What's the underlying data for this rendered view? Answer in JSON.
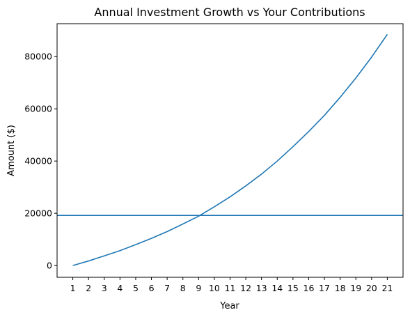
{
  "chart_data": {
    "type": "line",
    "title": "Annual Investment Growth vs Your Contributions",
    "xlabel": "Year",
    "ylabel": "Amount ($)",
    "x": [
      1,
      2,
      3,
      4,
      5,
      6,
      7,
      8,
      9,
      10,
      11,
      12,
      13,
      14,
      15,
      16,
      17,
      18,
      19,
      20,
      21
    ],
    "series": [
      {
        "color": "#1f77b4",
        "values": [
          0,
          1750,
          3700,
          5700,
          8000,
          10400,
          13000,
          15900,
          18900,
          22500,
          26300,
          30500,
          35000,
          40000,
          45500,
          51300,
          57500,
          64400,
          71800,
          79800,
          88500
        ]
      }
    ],
    "hline": {
      "value": 19200,
      "color": "#1f77b4"
    },
    "xlim": [
      0,
      22
    ],
    "ylim": [
      -4500,
      92600
    ],
    "xticks": [
      "1",
      "2",
      "3",
      "4",
      "5",
      "6",
      "7",
      "8",
      "9",
      "10",
      "11",
      "12",
      "13",
      "14",
      "15",
      "16",
      "17",
      "18",
      "19",
      "20",
      "21"
    ],
    "yticks": [
      "0",
      "20000",
      "40000",
      "60000",
      "80000"
    ],
    "grid": false
  }
}
